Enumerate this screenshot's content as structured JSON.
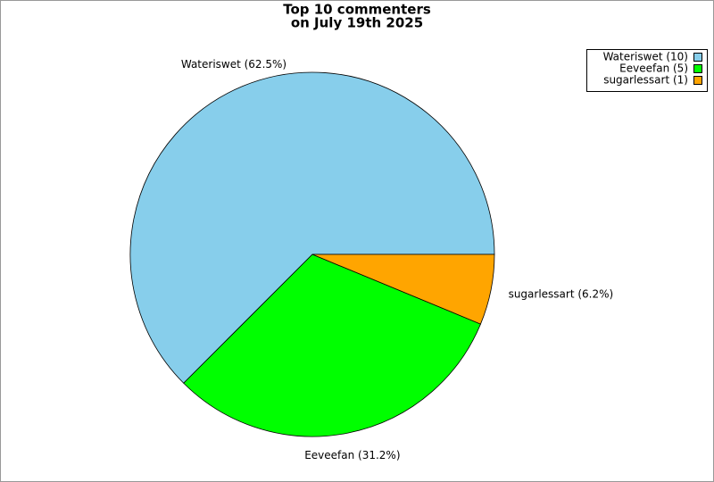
{
  "chart_data": {
    "type": "pie",
    "title": "Top 10 commenters",
    "subtitle": "on July 19th 2025",
    "categories": [
      "Wateriswet",
      "Eeveefan",
      "sugarlessart"
    ],
    "values": [
      10,
      5,
      1
    ],
    "colors": [
      "#87ceeb",
      "#00ff00",
      "#ffa500"
    ],
    "slice_labels": [
      "Wateriswet (62.5%)",
      "Eeveefan (31.2%)",
      "sugarlessart (6.2%)"
    ],
    "legend_labels": [
      "Wateriswet (10)",
      "Eeveefan (5)",
      "sugarlessart (1)"
    ],
    "legend": "top-right"
  }
}
